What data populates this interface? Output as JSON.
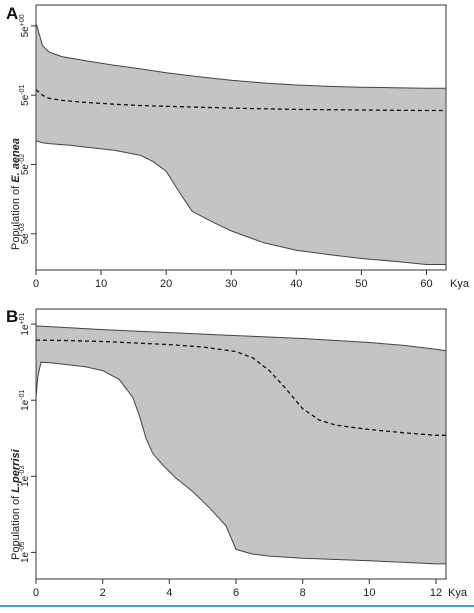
{
  "chart_data": [
    {
      "type": "area",
      "panel_label": "A",
      "xlabel": "Kya",
      "ylabel_prefix": "Population of ",
      "ylabel_species": "E. aenea",
      "xlim": [
        0,
        63
      ],
      "x_ticks": [
        0,
        10,
        20,
        30,
        40,
        50,
        60
      ],
      "y_scale": "log",
      "ylim": [
        0.0015,
        10
      ],
      "y_ticks": [
        {
          "value": 5,
          "base": "5e",
          "exp": "+00"
        },
        {
          "value": 0.5,
          "base": "5e",
          "exp": "-01"
        },
        {
          "value": 0.05,
          "base": "5e",
          "exp": "-02"
        },
        {
          "value": 0.005,
          "base": "5e",
          "exp": "-03"
        }
      ],
      "grid": false,
      "series": [
        {
          "role": "upper",
          "x": [
            0,
            1,
            2,
            4,
            8,
            12,
            16,
            20,
            25,
            30,
            35,
            40,
            45,
            50,
            55,
            60,
            63
          ],
          "y": [
            5.5,
            2.6,
            2.1,
            1.8,
            1.55,
            1.35,
            1.2,
            1.05,
            0.92,
            0.82,
            0.75,
            0.7,
            0.67,
            0.65,
            0.64,
            0.63,
            0.63
          ]
        },
        {
          "role": "median",
          "x": [
            0,
            1,
            2,
            4,
            8,
            12,
            16,
            20,
            25,
            30,
            35,
            40,
            45,
            50,
            55,
            60,
            63
          ],
          "y": [
            0.6,
            0.5,
            0.45,
            0.42,
            0.39,
            0.37,
            0.355,
            0.345,
            0.335,
            0.325,
            0.318,
            0.312,
            0.308,
            0.305,
            0.302,
            0.3,
            0.3
          ]
        },
        {
          "role": "lower",
          "x": [
            0,
            1,
            2,
            5,
            8,
            12,
            16,
            18,
            20,
            22,
            24,
            27,
            30,
            35,
            40,
            45,
            50,
            55,
            60,
            63
          ],
          "y": [
            0.11,
            0.103,
            0.1,
            0.095,
            0.088,
            0.08,
            0.068,
            0.055,
            0.04,
            0.02,
            0.0105,
            0.0075,
            0.0055,
            0.0037,
            0.0029,
            0.0025,
            0.0022,
            0.002,
            0.0018,
            0.0018
          ]
        }
      ]
    },
    {
      "type": "area",
      "panel_label": "B",
      "xlabel": "Kya",
      "ylabel_prefix": "Population of ",
      "ylabel_species": "L.perrisi",
      "xlim": [
        0,
        12.3
      ],
      "x_ticks": [
        0,
        2,
        4,
        6,
        8,
        10,
        12
      ],
      "y_scale": "log",
      "ylim": [
        2e-06,
        25
      ],
      "y_ticks": [
        {
          "value": 10,
          "base": "1e",
          "exp": "+01"
        },
        {
          "value": 0.1,
          "base": "1e",
          "exp": "-01"
        },
        {
          "value": 0.001,
          "base": "1e",
          "exp": "-03"
        },
        {
          "value": 1e-05,
          "base": "1e",
          "exp": "-05"
        }
      ],
      "grid": false,
      "series": [
        {
          "role": "upper",
          "x": [
            0,
            1,
            2,
            4,
            6,
            8,
            10,
            11,
            12,
            12.3
          ],
          "y": [
            9,
            8,
            7.2,
            6,
            5,
            4.2,
            3.3,
            2.8,
            2.2,
            2.0
          ]
        },
        {
          "role": "median",
          "x": [
            0,
            1,
            2,
            3,
            4,
            5,
            6,
            6.5,
            7,
            7.5,
            8,
            8.5,
            9,
            10,
            11,
            12,
            12.3
          ],
          "y": [
            3.8,
            3.7,
            3.5,
            3.2,
            2.9,
            2.5,
            1.9,
            1.3,
            0.6,
            0.2,
            0.06,
            0.03,
            0.022,
            0.017,
            0.014,
            0.012,
            0.012
          ]
        },
        {
          "role": "lower",
          "x": [
            0,
            0.05,
            0.15,
            0.5,
            1,
            1.5,
            2,
            2.5,
            2.9,
            3.1,
            3.3,
            3.5,
            3.8,
            4.2,
            4.7,
            5.2,
            5.7,
            6,
            6.5,
            7,
            8,
            9,
            10,
            11,
            12,
            12.3
          ],
          "y": [
            0.12,
            0.4,
            1.0,
            0.95,
            0.85,
            0.75,
            0.6,
            0.35,
            0.12,
            0.04,
            0.01,
            0.004,
            0.002,
            0.0009,
            0.0004,
            0.00015,
            5e-05,
            1.2e-05,
            9e-06,
            8e-06,
            7e-06,
            6.5e-06,
            6e-06,
            5.5e-06,
            5e-06,
            5e-06
          ]
        }
      ]
    }
  ]
}
